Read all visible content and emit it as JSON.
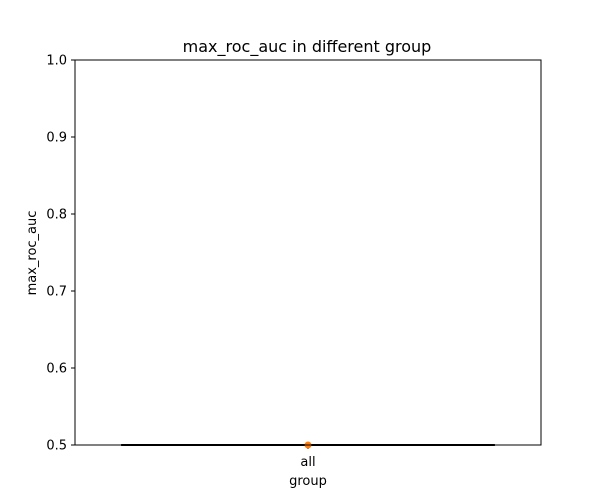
{
  "chart_data": {
    "type": "box",
    "title": "max_roc_auc in different group",
    "xlabel": "group",
    "ylabel": "max_roc_auc",
    "categories": [
      "all"
    ],
    "ylim": [
      0.5,
      1.0
    ],
    "yticks": [
      "0.5",
      "0.6",
      "0.7",
      "0.8",
      "0.9",
      "1.0"
    ],
    "grid": false,
    "series": [
      {
        "values": [
          {
            "category": "all",
            "min": 0.5,
            "q1": 0.5,
            "median": 0.5,
            "q3": 0.5,
            "max": 0.5
          }
        ]
      }
    ],
    "colors": {
      "box": "#000000",
      "median": "#ff7f0e",
      "frame": "#000000"
    }
  }
}
